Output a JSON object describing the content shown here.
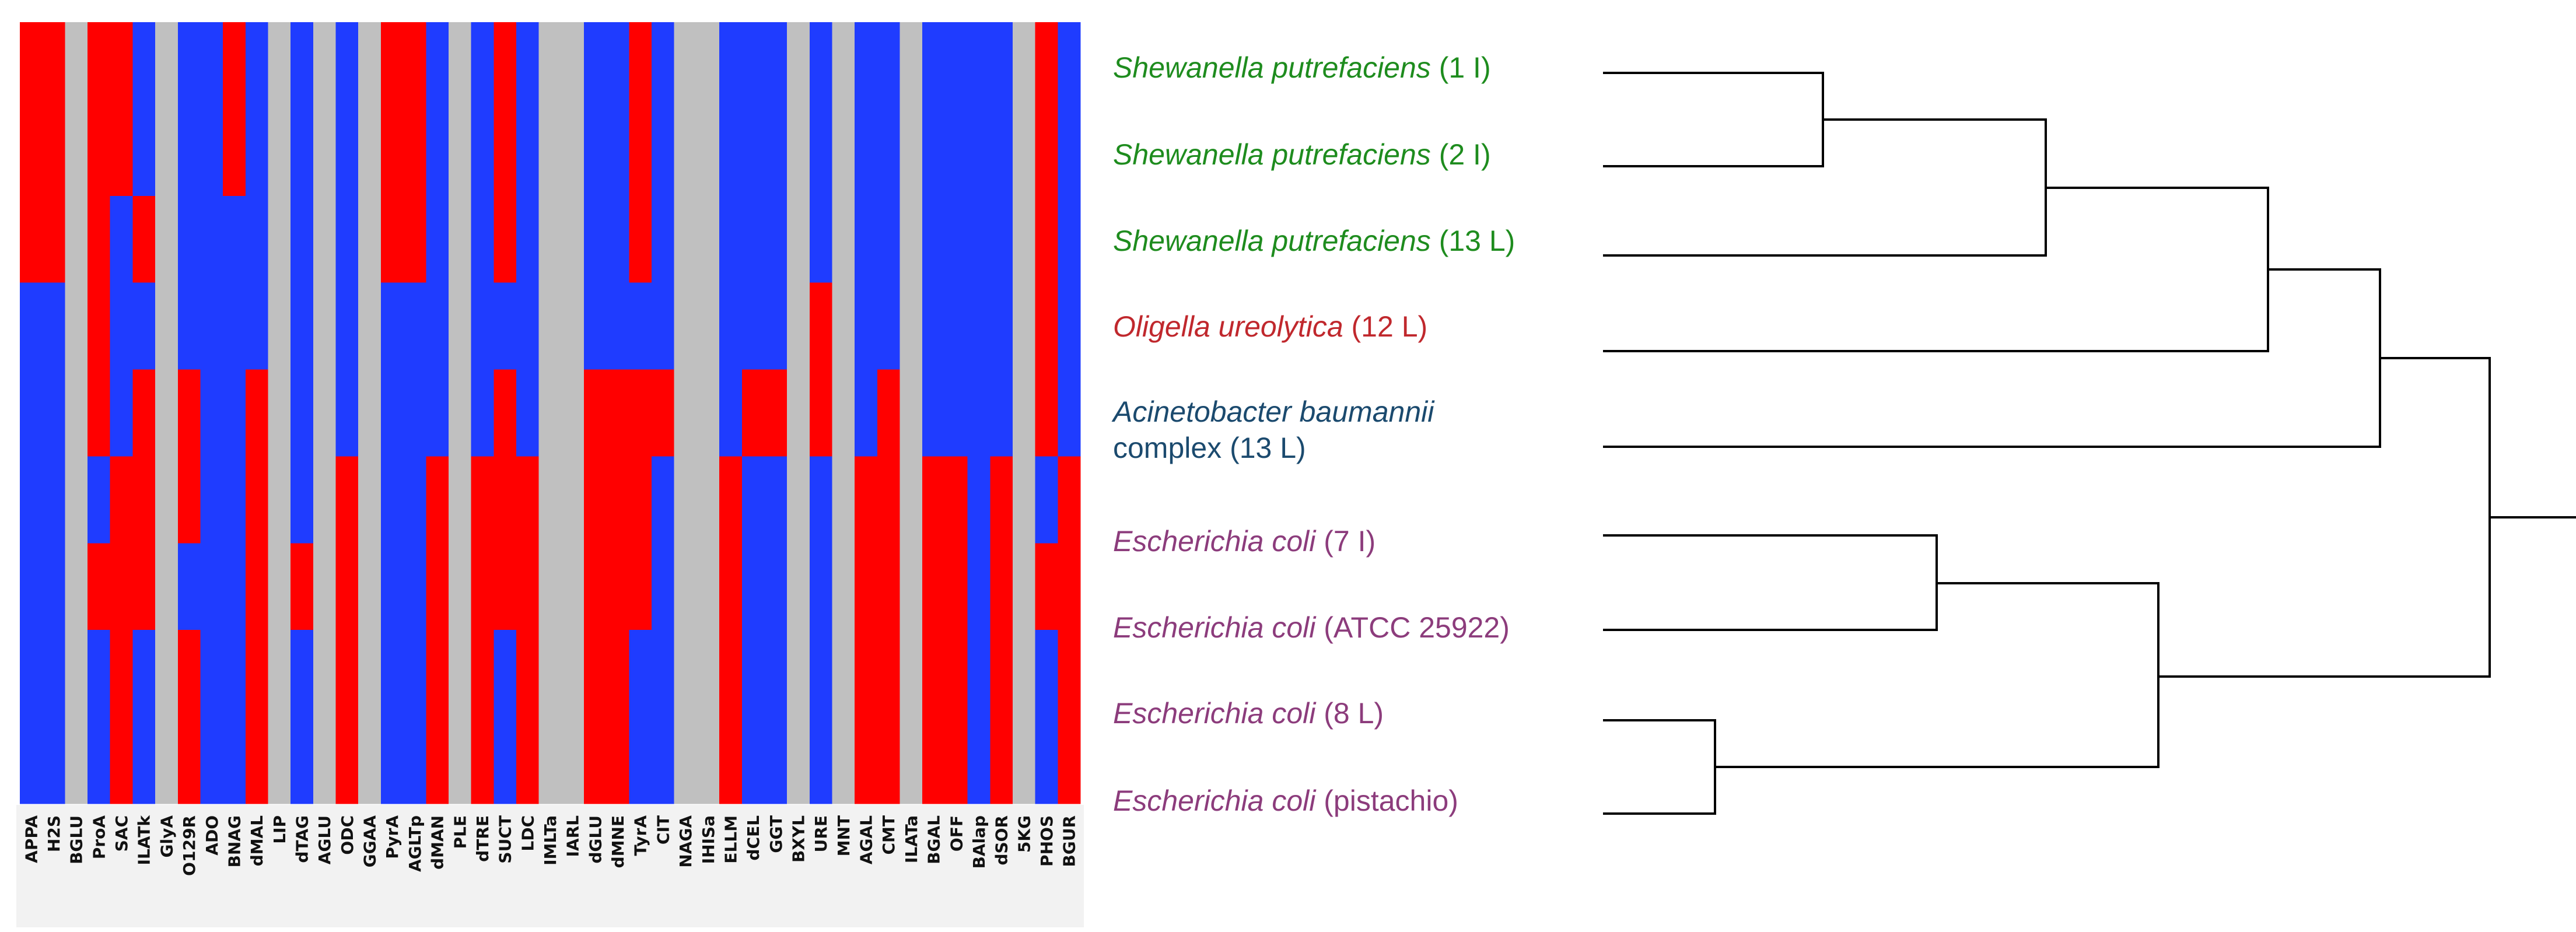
{
  "chart_data": {
    "type": "heatmap",
    "colors": {
      "positive": "#ff0000",
      "negative": "#1f3cff",
      "not_tested": "#c0c0c0"
    },
    "columns": [
      "APPA",
      "H2S",
      "BGLU",
      "ProA",
      "SAC",
      "ILATk",
      "GlyA",
      "O129R",
      "ADO",
      "BNAG",
      "dMAL",
      "LIP",
      "dTAG",
      "AGLU",
      "ODC",
      "GGAA",
      "PyrA",
      "AGLTp",
      "dMAN",
      "PLE",
      "dTRE",
      "SUCT",
      "LDC",
      "IMLTa",
      "IARL",
      "dGLU",
      "dMNE",
      "TyrA",
      "CIT",
      "NAGA",
      "IHISa",
      "ELLM",
      "dCEL",
      "GGT",
      "BXYL",
      "URE",
      "MNT",
      "AGAL",
      "CMT",
      "ILATa",
      "BGAL",
      "OFF",
      "BAlap",
      "dSOR",
      "5KG",
      "PHOS",
      "BGUR"
    ],
    "grey_columns": [
      "BGLU",
      "GlyA",
      "LIP",
      "AGLU",
      "GGAA",
      "PLE",
      "IMLTa",
      "IARL",
      "NAGA",
      "IHISa",
      "BXYL",
      "MNT",
      "ILATa",
      "5KG"
    ],
    "rows": [
      "Shewanella putrefaciens (1 I)",
      "Shewanella putrefaciens (2 I)",
      "Shewanella putrefaciens (13 L)",
      "Oligella ureolytica (12 L)",
      "Acinetobacter baumannii complex (13 L)",
      "Escherichia coli (7 I)",
      "Escherichia coli (ATCC 25922)",
      "Escherichia coli (8 L)",
      "Escherichia coli (pistachio)"
    ],
    "matrix": [
      [
        1,
        1,
        null,
        1,
        1,
        0,
        null,
        0,
        0,
        1,
        0,
        null,
        0,
        null,
        0,
        null,
        1,
        1,
        0,
        null,
        0,
        1,
        0,
        null,
        null,
        0,
        0,
        1,
        0,
        null,
        null,
        0,
        0,
        0,
        null,
        0,
        null,
        0,
        0,
        null,
        0,
        0,
        0,
        0,
        null,
        1,
        0
      ],
      [
        1,
        1,
        null,
        1,
        1,
        0,
        null,
        0,
        0,
        1,
        0,
        null,
        0,
        null,
        0,
        null,
        1,
        1,
        0,
        null,
        0,
        1,
        0,
        null,
        null,
        0,
        0,
        1,
        0,
        null,
        null,
        0,
        0,
        0,
        null,
        0,
        null,
        0,
        0,
        null,
        0,
        0,
        0,
        0,
        null,
        1,
        0
      ],
      [
        1,
        1,
        null,
        1,
        0,
        1,
        null,
        0,
        0,
        0,
        0,
        null,
        0,
        null,
        0,
        null,
        1,
        1,
        0,
        null,
        0,
        1,
        0,
        null,
        null,
        0,
        0,
        1,
        0,
        null,
        null,
        0,
        0,
        0,
        null,
        0,
        null,
        0,
        0,
        null,
        0,
        0,
        0,
        0,
        null,
        1,
        0
      ],
      [
        0,
        0,
        null,
        1,
        0,
        0,
        null,
        0,
        0,
        0,
        0,
        null,
        0,
        null,
        0,
        null,
        0,
        0,
        0,
        null,
        0,
        0,
        0,
        null,
        null,
        0,
        0,
        0,
        0,
        null,
        null,
        0,
        0,
        0,
        null,
        1,
        null,
        0,
        0,
        null,
        0,
        0,
        0,
        0,
        null,
        1,
        0
      ],
      [
        0,
        0,
        null,
        1,
        0,
        1,
        null,
        1,
        0,
        0,
        1,
        null,
        0,
        null,
        0,
        null,
        0,
        0,
        0,
        null,
        0,
        1,
        0,
        null,
        null,
        1,
        1,
        1,
        1,
        null,
        null,
        0,
        1,
        1,
        null,
        1,
        null,
        0,
        1,
        null,
        0,
        0,
        0,
        0,
        null,
        1,
        0
      ],
      [
        0,
        0,
        null,
        0,
        1,
        1,
        null,
        1,
        0,
        0,
        1,
        null,
        0,
        null,
        1,
        null,
        0,
        0,
        1,
        null,
        1,
        1,
        1,
        null,
        null,
        1,
        1,
        1,
        0,
        null,
        null,
        1,
        0,
        0,
        null,
        0,
        null,
        1,
        1,
        null,
        1,
        1,
        0,
        1,
        null,
        0,
        1
      ],
      [
        0,
        0,
        null,
        1,
        1,
        1,
        null,
        0,
        0,
        0,
        1,
        null,
        1,
        null,
        1,
        null,
        0,
        0,
        1,
        null,
        1,
        1,
        1,
        null,
        null,
        1,
        1,
        1,
        0,
        null,
        null,
        1,
        0,
        0,
        null,
        0,
        null,
        1,
        1,
        null,
        1,
        1,
        0,
        1,
        null,
        1,
        1
      ],
      [
        0,
        0,
        null,
        0,
        1,
        0,
        null,
        1,
        0,
        0,
        1,
        null,
        0,
        null,
        1,
        null,
        0,
        0,
        1,
        null,
        1,
        0,
        1,
        null,
        null,
        1,
        1,
        0,
        0,
        null,
        null,
        1,
        0,
        0,
        null,
        0,
        null,
        1,
        1,
        null,
        1,
        1,
        0,
        1,
        null,
        0,
        1
      ],
      [
        0,
        0,
        null,
        0,
        1,
        0,
        null,
        1,
        0,
        0,
        1,
        null,
        0,
        null,
        1,
        null,
        0,
        0,
        1,
        null,
        1,
        0,
        1,
        null,
        null,
        1,
        1,
        0,
        0,
        null,
        null,
        1,
        0,
        0,
        null,
        0,
        null,
        1,
        1,
        null,
        1,
        1,
        0,
        1,
        null,
        0,
        1
      ]
    ],
    "taxa": [
      {
        "species": "Shewanella putrefaciens",
        "strain": " (1 I)",
        "color": "#1e8c1e"
      },
      {
        "species": "Shewanella putrefaciens",
        "strain": " (2 I)",
        "color": "#1e8c1e"
      },
      {
        "species": "Shewanella putrefaciens",
        "strain": " (13 L)",
        "color": "#1e8c1e"
      },
      {
        "species": "Oligella ureolytica",
        "strain": " (12 L)",
        "color": "#c0282d"
      },
      {
        "species": "Acinetobacter baumannii",
        "strain": "complex (13 L)",
        "color": "#1b4a6e",
        "two_line": true
      },
      {
        "species": "Escherichia coli",
        "strain": " (7 I)",
        "color": "#8c3c7c"
      },
      {
        "species": "Escherichia coli",
        "strain": " (ATCC 25922)",
        "color": "#8c3c7c"
      },
      {
        "species": "Escherichia coli",
        "strain": " (8 L)",
        "color": "#8c3c7c"
      },
      {
        "species": "Escherichia coli",
        "strain": " (pistachio)",
        "color": "#8c3c7c"
      }
    ]
  }
}
